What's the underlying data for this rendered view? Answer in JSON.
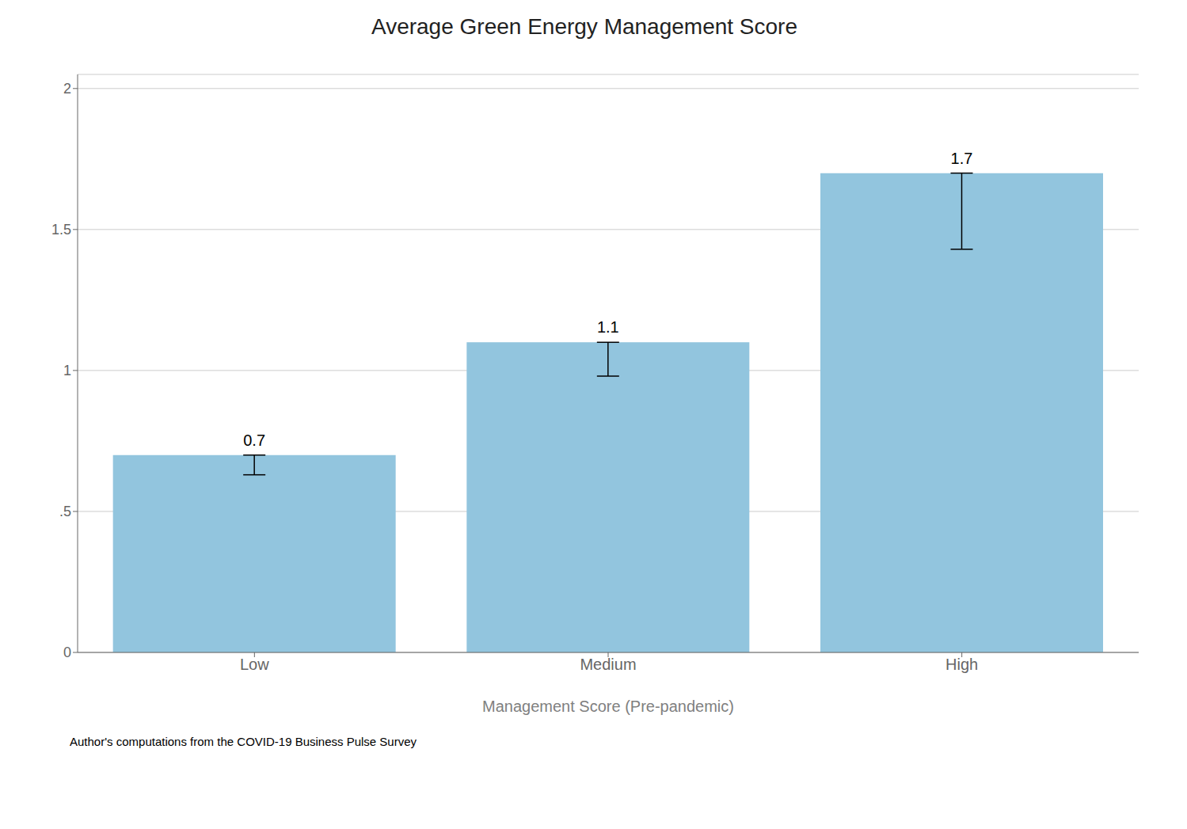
{
  "chart_data": {
    "type": "bar",
    "title": "Average Green Energy Management Score",
    "categories": [
      "Low",
      "Medium",
      "High"
    ],
    "values": [
      0.7,
      1.1,
      1.7
    ],
    "value_labels": [
      "0.7",
      "1.1",
      "1.7"
    ],
    "data_labels": true,
    "errors_lower": [
      0.07,
      0.12,
      0.27
    ],
    "color": "#92C5DE",
    "xlabel": "Management Score (Pre-pandemic)",
    "caption": "Author's computations from the COVID-19 Business Pulse Survey",
    "ylim": [
      0,
      2.05
    ],
    "yticks": [
      0,
      {
        "value": 0.5,
        "label": ".5"
      },
      1,
      1.5,
      2
    ],
    "grid": true
  }
}
